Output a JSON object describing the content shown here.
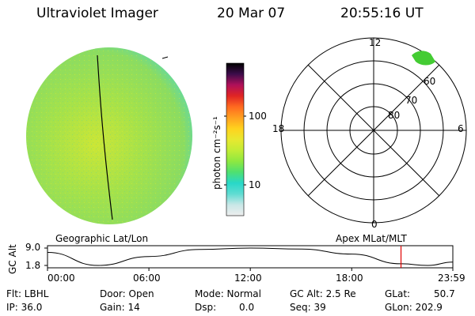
{
  "header": {
    "instrument": "Ultraviolet Imager",
    "date": "20 Mar 07",
    "time": "20:55:16 UT"
  },
  "colorbar": {
    "unit_label": "photon cm⁻²s⁻¹",
    "ticks": [
      "100",
      "10"
    ],
    "colors": [
      "#eeeeee",
      "#c9e7e7",
      "#5fdcd2",
      "#28d8c8",
      "#4fe070",
      "#8fe840",
      "#c2ec36",
      "#e8e830",
      "#ffd21e",
      "#ffa020",
      "#ff6a20",
      "#e02424",
      "#b0105a",
      "#3c0c4a",
      "#000000"
    ]
  },
  "polar_plot": {
    "mlt_labels": [
      "12",
      "18",
      "6",
      "0"
    ],
    "lat_labels": [
      "60",
      "70",
      "80"
    ]
  },
  "timeline": {
    "left_title": "Geographic Lat/Lon",
    "right_title": "Apex MLat/MLT",
    "axis_label": "GC Alt",
    "y_ticks": [
      "9.0",
      "1.8"
    ],
    "x_ticks": [
      "00:00",
      "06:00",
      "12:00",
      "18:00",
      "23:59"
    ],
    "current_marker_color": "#e00000"
  },
  "info": {
    "flt": "Flt: LBHL",
    "ip": "IP: 36.0",
    "door": "Door: Open",
    "gain": "Gain: 14",
    "mode": "Mode: Normal",
    "dsp": "Dsp:",
    "dsp_value": "0.0",
    "gcalt": "GC Alt: 2.5 Re",
    "seq": "Seq: 39",
    "glat": "GLat:",
    "glat_value": "50.7",
    "glon": "GLon: 202.9"
  },
  "colors": {
    "disk_main": "#a6e24a",
    "disk_edge": "#5fd8a8",
    "auroral_spot": "#44cc33"
  },
  "chart_data": {
    "type": "line",
    "title": "",
    "xlabel": "",
    "ylabel": "GC Alt",
    "x": [
      "00:00",
      "03:00",
      "06:00",
      "09:00",
      "12:00",
      "15:00",
      "18:00",
      "20:55",
      "22:30",
      "23:59"
    ],
    "series": [
      {
        "values": [
          7.2,
          1.8,
          5.5,
          8.4,
          9.0,
          8.6,
          6.5,
          2.5,
          1.8,
          3.2
        ]
      }
    ],
    "x_ticks": [
      "00:00",
      "06:00",
      "12:00",
      "18:00",
      "23:59"
    ],
    "y_ticks": [
      "9.0",
      "1.8"
    ],
    "ylim": [
      1.8,
      9.0
    ],
    "current_time": "20:55",
    "grid": false
  }
}
